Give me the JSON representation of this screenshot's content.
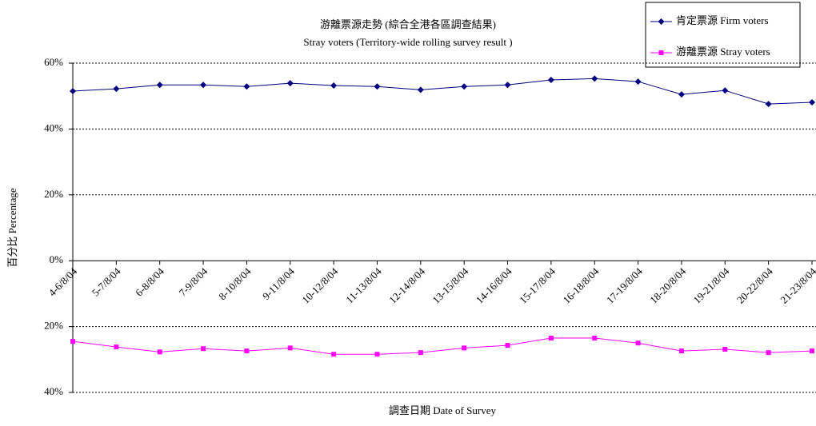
{
  "chart_data": {
    "type": "line",
    "title": "游離票源走勢 (綜合全港各區調查結果)",
    "subtitle": "Stray voters (Territory-wide rolling survey result )",
    "x_label": "調查日期 Date of Survey",
    "y_label": "百分比 Percentage",
    "categories": [
      "4-6/8/04",
      "5-7/8/04",
      "6-8/8/04",
      "7-9/8/04",
      "8-10/8/04",
      "9-11/8/04",
      "10-12/8/04",
      "11-13/8/04",
      "12-14/8/04",
      "13-15/8/04",
      "14-16/8/04",
      "15-17/8/04",
      "16-18/8/04",
      "17-19/8/04",
      "18-20/8/04",
      "19-21/8/04",
      "20-22/8/04",
      "21-23/8/04"
    ],
    "series": [
      {
        "name": "肯定票源 Firm voters",
        "color": "#000080",
        "marker": "diamond",
        "values": [
          51.5,
          52.2,
          53.4,
          53.4,
          52.9,
          53.9,
          53.2,
          52.9,
          51.9,
          52.9,
          53.4,
          54.9,
          55.3,
          54.4,
          50.5,
          51.7,
          47.6,
          48.1
        ]
      },
      {
        "name": "游離票源 Stray voters",
        "color": "#ff00ff",
        "marker": "square",
        "values": [
          -24.5,
          -26.2,
          -27.7,
          -26.7,
          -27.4,
          -26.5,
          -28.4,
          -28.4,
          -27.9,
          -26.5,
          -25.7,
          -23.5,
          -23.5,
          -25.0,
          -27.4,
          -26.9,
          -27.9,
          -27.4
        ]
      }
    ],
    "ylim": [
      -40,
      60
    ],
    "yticks": [
      {
        "value": -40,
        "label": "40%"
      },
      {
        "value": -20,
        "label": "20%"
      },
      {
        "value": 0,
        "label": "0%"
      },
      {
        "value": 20,
        "label": "20%"
      },
      {
        "value": 40,
        "label": "40%"
      },
      {
        "value": 60,
        "label": "60%"
      }
    ],
    "grid": true
  }
}
